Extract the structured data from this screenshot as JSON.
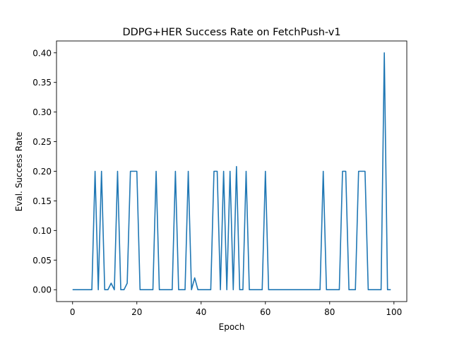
{
  "chart_data": {
    "type": "line",
    "title": "DDPG+HER Success Rate on FetchPush-v1",
    "xlabel": "Epoch",
    "ylabel": "Eval. Success Rate",
    "xlim": [
      -5,
      104
    ],
    "ylim": [
      -0.02,
      0.42
    ],
    "xticks": [
      0,
      20,
      40,
      60,
      80,
      100
    ],
    "xtick_labels": [
      "0",
      "20",
      "40",
      "60",
      "80",
      "100"
    ],
    "yticks": [
      0.0,
      0.05,
      0.1,
      0.15,
      0.2,
      0.25,
      0.3,
      0.35,
      0.4
    ],
    "ytick_labels": [
      "0.00",
      "0.05",
      "0.10",
      "0.15",
      "0.20",
      "0.25",
      "0.30",
      "0.35",
      "0.40"
    ],
    "grid": false,
    "color": "#1f77b4",
    "series": [
      {
        "x": [
          0,
          1,
          2,
          3,
          4,
          5,
          6,
          7,
          8,
          9,
          10,
          11,
          12,
          13,
          14,
          15,
          16,
          17,
          18,
          19,
          20,
          21,
          22,
          23,
          24,
          25,
          26,
          27,
          28,
          29,
          30,
          31,
          32,
          33,
          34,
          35,
          36,
          37,
          38,
          39,
          40,
          41,
          42,
          43,
          44,
          45,
          46,
          47,
          48,
          49,
          50,
          51,
          52,
          53,
          54,
          55,
          56,
          57,
          58,
          59,
          60,
          61,
          62,
          63,
          64,
          65,
          66,
          67,
          68,
          69,
          70,
          71,
          72,
          73,
          74,
          75,
          76,
          77,
          78,
          79,
          80,
          81,
          82,
          83,
          84,
          85,
          86,
          87,
          88,
          89,
          90,
          91,
          92,
          93,
          94,
          95,
          96,
          97,
          98,
          99
        ],
        "y": [
          0,
          0,
          0,
          0,
          0,
          0,
          0,
          0.2,
          0,
          0.2,
          0,
          0,
          0.011,
          0,
          0.2,
          0,
          0,
          0.011,
          0.2,
          0.2,
          0.2,
          0,
          0,
          0,
          0,
          0,
          0.2,
          0,
          0,
          0,
          0,
          0,
          0.2,
          0,
          0,
          0,
          0.2,
          0,
          0.02,
          0,
          0,
          0,
          0,
          0,
          0.2,
          0.2,
          0,
          0.2,
          0,
          0.2,
          0,
          0.208,
          0,
          0,
          0.2,
          0,
          0,
          0,
          0,
          0,
          0.2,
          0,
          0,
          0,
          0,
          0,
          0,
          0,
          0,
          0,
          0,
          0,
          0,
          0,
          0,
          0,
          0,
          0,
          0.2,
          0,
          0,
          0,
          0,
          0,
          0.2,
          0.2,
          0,
          0,
          0,
          0.2,
          0.2,
          0.2,
          0,
          0,
          0,
          0,
          0,
          0.4,
          0,
          0
        ]
      }
    ]
  }
}
